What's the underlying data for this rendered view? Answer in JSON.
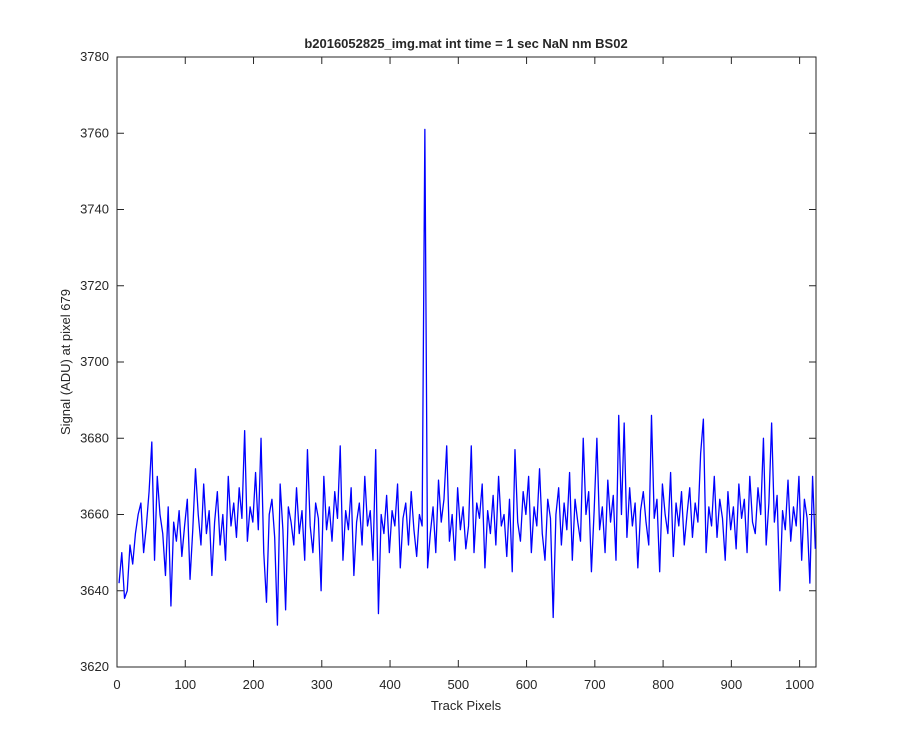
{
  "chart_data": {
    "type": "line",
    "title": "b2016052825_img.mat int time = 1 sec  NaN nm BS02",
    "xlabel": "Track Pixels",
    "ylabel": "Signal (ADU) at pixel 679",
    "color": "#0000ff",
    "xlim": [
      0,
      1024
    ],
    "ylim": [
      3620,
      3780
    ],
    "xticks": [
      0,
      100,
      200,
      300,
      400,
      500,
      600,
      700,
      800,
      900,
      1000
    ],
    "yticks": [
      3620,
      3640,
      3660,
      3680,
      3700,
      3720,
      3740,
      3760,
      3780
    ],
    "grid": false,
    "x": [
      3,
      7,
      11,
      15,
      19,
      23,
      27,
      31,
      35,
      39,
      43,
      47,
      51,
      55,
      59,
      63,
      67,
      71,
      75,
      79,
      83,
      87,
      91,
      95,
      99,
      103,
      107,
      111,
      115,
      119,
      123,
      127,
      131,
      135,
      139,
      143,
      147,
      151,
      155,
      159,
      163,
      167,
      171,
      175,
      179,
      183,
      187,
      191,
      195,
      199,
      203,
      207,
      211,
      215,
      219,
      223,
      227,
      231,
      235,
      239,
      243,
      247,
      251,
      255,
      259,
      263,
      267,
      271,
      275,
      279,
      283,
      287,
      291,
      295,
      299,
      303,
      307,
      311,
      315,
      319,
      323,
      327,
      331,
      335,
      339,
      343,
      347,
      351,
      355,
      359,
      363,
      367,
      371,
      375,
      379,
      383,
      387,
      391,
      395,
      399,
      403,
      407,
      411,
      415,
      419,
      423,
      427,
      431,
      435,
      439,
      443,
      447,
      451,
      455,
      459,
      463,
      467,
      471,
      475,
      479,
      483,
      487,
      491,
      495,
      499,
      503,
      507,
      511,
      515,
      519,
      523,
      527,
      531,
      535,
      539,
      543,
      547,
      551,
      555,
      559,
      563,
      567,
      571,
      575,
      579,
      583,
      587,
      591,
      595,
      599,
      603,
      607,
      611,
      615,
      619,
      623,
      627,
      631,
      635,
      639,
      643,
      647,
      651,
      655,
      659,
      663,
      667,
      671,
      675,
      679,
      683,
      687,
      691,
      695,
      699,
      703,
      707,
      711,
      715,
      719,
      723,
      727,
      731,
      735,
      739,
      743,
      747,
      751,
      755,
      759,
      763,
      767,
      771,
      775,
      779,
      783,
      787,
      791,
      795,
      799,
      803,
      807,
      811,
      815,
      819,
      823,
      827,
      831,
      835,
      839,
      843,
      847,
      851,
      855,
      859,
      863,
      867,
      871,
      875,
      879,
      883,
      887,
      891,
      895,
      899,
      903,
      907,
      911,
      915,
      919,
      923,
      927,
      931,
      935,
      939,
      943,
      947,
      951,
      955,
      959,
      963,
      967,
      971,
      975,
      979,
      983,
      987,
      991,
      995,
      999,
      1003,
      1007,
      1011,
      1015,
      1019,
      1023
    ],
    "values": [
      3642,
      3650,
      3638,
      3640,
      3652,
      3647,
      3655,
      3660,
      3663,
      3650,
      3657,
      3666,
      3679,
      3648,
      3670,
      3660,
      3655,
      3644,
      3662,
      3636,
      3658,
      3653,
      3661,
      3649,
      3657,
      3664,
      3643,
      3656,
      3672,
      3660,
      3652,
      3668,
      3655,
      3661,
      3644,
      3658,
      3666,
      3652,
      3660,
      3648,
      3670,
      3657,
      3663,
      3654,
      3667,
      3659,
      3682,
      3653,
      3662,
      3658,
      3671,
      3656,
      3680,
      3650,
      3637,
      3660,
      3664,
      3654,
      3631,
      3668,
      3656,
      3635,
      3662,
      3658,
      3652,
      3667,
      3655,
      3661,
      3648,
      3677,
      3657,
      3650,
      3663,
      3659,
      3640,
      3670,
      3656,
      3662,
      3653,
      3666,
      3659,
      3678,
      3648,
      3661,
      3656,
      3667,
      3644,
      3658,
      3663,
      3652,
      3670,
      3657,
      3661,
      3648,
      3677,
      3634,
      3660,
      3655,
      3665,
      3650,
      3661,
      3657,
      3668,
      3646,
      3659,
      3663,
      3652,
      3666,
      3656,
      3649,
      3660,
      3657,
      3761,
      3646,
      3655,
      3662,
      3650,
      3669,
      3658,
      3664,
      3678,
      3653,
      3660,
      3648,
      3667,
      3656,
      3662,
      3651,
      3657,
      3678,
      3650,
      3663,
      3659,
      3668,
      3646,
      3661,
      3655,
      3665,
      3652,
      3670,
      3657,
      3660,
      3649,
      3664,
      3645,
      3677,
      3658,
      3653,
      3666,
      3660,
      3670,
      3650,
      3662,
      3657,
      3672,
      3655,
      3648,
      3664,
      3659,
      3633,
      3660,
      3667,
      3652,
      3663,
      3656,
      3671,
      3648,
      3664,
      3658,
      3653,
      3680,
      3660,
      3666,
      3645,
      3661,
      3680,
      3656,
      3662,
      3650,
      3669,
      3658,
      3665,
      3648,
      3686,
      3660,
      3684,
      3654,
      3667,
      3657,
      3663,
      3646,
      3661,
      3666,
      3658,
      3652,
      3686,
      3659,
      3664,
      3645,
      3668,
      3660,
      3655,
      3671,
      3649,
      3663,
      3657,
      3666,
      3652,
      3660,
      3667,
      3654,
      3663,
      3658,
      3676,
      3685,
      3650,
      3662,
      3657,
      3670,
      3654,
      3664,
      3659,
      3648,
      3666,
      3656,
      3662,
      3651,
      3668,
      3659,
      3664,
      3650,
      3670,
      3658,
      3655,
      3667,
      3660,
      3680,
      3652,
      3663,
      3684,
      3658,
      3665,
      3640,
      3661,
      3656,
      3669,
      3653,
      3662,
      3657,
      3670,
      3648,
      3664,
      3659,
      3642,
      3670,
      3651
    ]
  }
}
